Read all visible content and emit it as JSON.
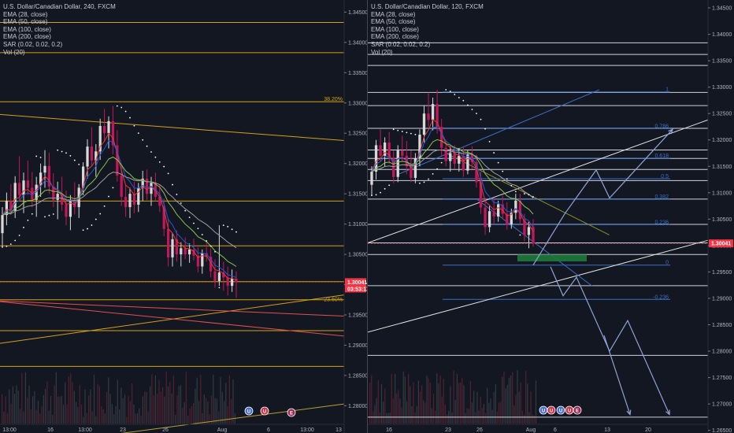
{
  "colors": {
    "background": "#131722",
    "bull": "#d8d8d8",
    "bear": "#c2185b",
    "ema28": "#e53935",
    "ema50": "#1e5bd6",
    "ema100": "#8bc34a",
    "ema200": "#9e9e9e",
    "sar": "#ffffff",
    "hline": "#d4a017",
    "trend_red": "#e05050",
    "fib": "#3d6ec4",
    "white_line": "#e0e0e0",
    "arrow": "#8fa3d6",
    "zone": "#1e7a3a",
    "price_tag": "#f23645"
  },
  "left": {
    "title": "U.S. Dollar/Canadian Dollar, 240, FXCM",
    "indicators": [
      "EMA (28, close)",
      "EMA (50, close)",
      "EMA (100, close)",
      "EMA (200, close)",
      "SAR (0.02, 0.02, 0.2)",
      "Vol (20)"
    ],
    "fib_labels": [
      {
        "text": "38.20%",
        "price": 1.3302
      },
      {
        "text": "23.60%",
        "price": 1.29715
      }
    ],
    "price_tag": "1.30041",
    "countdown": "03:53:12",
    "ghost_tag": "1.30041",
    "event_badges": [
      "U",
      "U",
      "E"
    ]
  },
  "right": {
    "title": "U.S. Dollar/Canadian Dollar, 120, FXCM",
    "indicators": [
      "EMA (28, close)",
      "EMA (50, close)",
      "EMA (100, close)",
      "EMA (200, close)",
      "SAR (0.02, 0.02, 0.2)",
      "Vol (20)"
    ],
    "fib_labels": [
      {
        "text": "1",
        "price": 1.3291
      },
      {
        "text": "0.786",
        "price": 1.32215
      },
      {
        "text": "0.618",
        "price": 1.31655
      },
      {
        "text": "0.5",
        "price": 1.31265
      },
      {
        "text": "0.382",
        "price": 1.30875
      },
      {
        "text": "0.236",
        "price": 1.30395
      },
      {
        "text": "0",
        "price": 1.2963
      },
      {
        "text": "-0.236",
        "price": 1.2898
      }
    ],
    "price_tag": "1.30041",
    "event_badges": [
      "U",
      "U",
      "U",
      "U",
      "E"
    ]
  },
  "chart_data": [
    {
      "type": "candlestick",
      "title": "U.S. Dollar/Canadian Dollar, 240, FXCM",
      "ylim": [
        1.2755,
        1.347
      ],
      "y_ticks": [
        1.345,
        1.34,
        1.335,
        1.33,
        1.325,
        1.32,
        1.315,
        1.31,
        1.305,
        1.3,
        1.295,
        1.29,
        1.285,
        1.28,
        1.275
      ],
      "y_tick_labels": [
        "1.34500",
        "1.34000",
        "1.33500",
        "1.33000",
        "1.32500",
        "1.32000",
        "1.31500",
        "1.31000",
        "1.30500",
        "1.30000",
        "1.29500",
        "1.29000",
        "1.28500",
        "1.28000",
        "1.27500"
      ],
      "x_ticks": [
        "13:00",
        "16",
        "13:00",
        "23",
        "26",
        "Aug",
        "6",
        "13:00",
        "13"
      ],
      "last_price": 1.30041,
      "horizontal_levels": [
        1.3433,
        1.3383,
        1.3302,
        1.3138,
        1.3064,
        1.3005,
        1.2975,
        1.2924,
        1.2865
      ],
      "trendlines": [
        {
          "name": "upper",
          "from": [
            0,
            1.3281
          ],
          "to": [
            1,
            1.3238
          ]
        },
        {
          "name": "lower",
          "from": [
            0,
            1.2903
          ],
          "to": [
            1,
            1.2983
          ]
        },
        {
          "name": "red-1",
          "from": [
            0,
            1.2972
          ],
          "to": [
            1,
            1.2915
          ]
        },
        {
          "name": "red-2",
          "from": [
            0,
            1.2973
          ],
          "to": [
            1,
            1.2948
          ]
        },
        {
          "name": "bottom",
          "from": [
            0,
            1.2728
          ],
          "to": [
            1,
            1.2803
          ]
        }
      ],
      "candles": [
        [
          1.3085,
          1.3128,
          1.3062,
          1.3115
        ],
        [
          1.3115,
          1.3152,
          1.3098,
          1.3138
        ],
        [
          1.3138,
          1.3166,
          1.3115,
          1.3122
        ],
        [
          1.3122,
          1.3179,
          1.311,
          1.3168
        ],
        [
          1.3168,
          1.3212,
          1.314,
          1.3148
        ],
        [
          1.3148,
          1.3185,
          1.3118,
          1.3172
        ],
        [
          1.3172,
          1.3205,
          1.3148,
          1.316
        ],
        [
          1.316,
          1.3186,
          1.3128,
          1.314
        ],
        [
          1.314,
          1.3178,
          1.3112,
          1.3165
        ],
        [
          1.3165,
          1.32,
          1.3145,
          1.3185
        ],
        [
          1.3185,
          1.3222,
          1.316,
          1.3196
        ],
        [
          1.3196,
          1.3218,
          1.315,
          1.3162
        ],
        [
          1.3162,
          1.3184,
          1.3128,
          1.314
        ],
        [
          1.314,
          1.317,
          1.3108,
          1.315
        ],
        [
          1.315,
          1.3178,
          1.3122,
          1.3132
        ],
        [
          1.3132,
          1.3155,
          1.3098,
          1.3112
        ],
        [
          1.3112,
          1.3148,
          1.309,
          1.3138
        ],
        [
          1.3138,
          1.3169,
          1.3116,
          1.3128
        ],
        [
          1.3128,
          1.3166,
          1.311,
          1.316
        ],
        [
          1.316,
          1.3202,
          1.3148,
          1.3195
        ],
        [
          1.3195,
          1.324,
          1.3175,
          1.3228
        ],
        [
          1.3228,
          1.326,
          1.3195,
          1.3205
        ],
        [
          1.3205,
          1.3232,
          1.3178,
          1.322
        ],
        [
          1.322,
          1.3274,
          1.3206,
          1.3262
        ],
        [
          1.3262,
          1.329,
          1.3236,
          1.325
        ],
        [
          1.325,
          1.3278,
          1.3225,
          1.327
        ],
        [
          1.327,
          1.3295,
          1.3215,
          1.323
        ],
        [
          1.323,
          1.3255,
          1.317,
          1.318
        ],
        [
          1.318,
          1.3198,
          1.313,
          1.3145
        ],
        [
          1.3145,
          1.3165,
          1.3112,
          1.3128
        ],
        [
          1.3128,
          1.316,
          1.311,
          1.315
        ],
        [
          1.315,
          1.317,
          1.3118,
          1.3132
        ],
        [
          1.3132,
          1.3168,
          1.312,
          1.316
        ],
        [
          1.316,
          1.3188,
          1.3138,
          1.3175
        ],
        [
          1.3175,
          1.319,
          1.314,
          1.315
        ],
        [
          1.315,
          1.3178,
          1.313,
          1.3168
        ],
        [
          1.3168,
          1.3185,
          1.3138,
          1.3145
        ],
        [
          1.3145,
          1.3165,
          1.312,
          1.313
        ],
        [
          1.313,
          1.3142,
          1.308,
          1.3092
        ],
        [
          1.3092,
          1.3108,
          1.303,
          1.3045
        ],
        [
          1.3045,
          1.3085,
          1.303,
          1.3075
        ],
        [
          1.3075,
          1.309,
          1.3038,
          1.305
        ],
        [
          1.305,
          1.307,
          1.303,
          1.306
        ],
        [
          1.306,
          1.3078,
          1.3042,
          1.305
        ],
        [
          1.305,
          1.3068,
          1.3036,
          1.3058
        ],
        [
          1.3058,
          1.3076,
          1.304,
          1.3048
        ],
        [
          1.3048,
          1.3062,
          1.302,
          1.303
        ],
        [
          1.303,
          1.3058,
          1.3018,
          1.3052
        ],
        [
          1.3052,
          1.3072,
          1.3038,
          1.3046
        ],
        [
          1.3046,
          1.306,
          1.3012,
          1.3022
        ],
        [
          1.3022,
          1.3042,
          1.2995,
          1.3006
        ],
        [
          1.3006,
          1.3098,
          1.2998,
          1.302
        ],
        [
          1.302,
          1.3038,
          1.299,
          1.3012
        ],
        [
          1.3012,
          1.303,
          1.2982,
          1.2998
        ],
        [
          1.2998,
          1.3025,
          1.2988,
          1.301
        ],
        [
          1.301,
          1.3022,
          1.2978,
          1.3004
        ]
      ]
    },
    {
      "type": "candlestick",
      "title": "U.S. Dollar/Canadian Dollar, 120, FXCM",
      "ylim": [
        1.2645,
        1.3465
      ],
      "y_ticks": [
        1.345,
        1.34,
        1.335,
        1.33,
        1.325,
        1.32,
        1.315,
        1.31,
        1.305,
        1.3,
        1.295,
        1.29,
        1.285,
        1.28,
        1.275,
        1.27,
        1.265
      ],
      "y_tick_labels": [
        "1.34500",
        "1.34000",
        "1.33500",
        "1.33000",
        "1.32500",
        "1.32000",
        "1.31500",
        "1.31000",
        "1.30500",
        "1.30000",
        "1.29500",
        "1.29000",
        "1.28500",
        "1.28000",
        "1.27500",
        "1.27000",
        "1.26500"
      ],
      "x_ticks": [
        "16",
        "23",
        "26",
        "Aug",
        "6",
        "13",
        "20"
      ],
      "last_price": 1.30041,
      "horizontal_levels": [
        1.3384,
        1.3362,
        1.3341,
        1.329,
        1.3265,
        1.3222,
        1.3181,
        1.3165,
        1.3144,
        1.3123,
        1.3088,
        1.304,
        1.3005,
        1.2983,
        1.2924,
        1.2792,
        1.2675
      ],
      "trendlines": [
        {
          "name": "white-upper",
          "from": [
            0,
            1.3005
          ],
          "to": [
            1,
            1.3238
          ]
        },
        {
          "name": "white-lower",
          "from": [
            0,
            1.2836
          ],
          "to": [
            1,
            1.301
          ]
        },
        {
          "name": "blue-diag-1",
          "from": [
            0.09,
            1.3135
          ],
          "to": [
            0.68,
            1.3295
          ]
        },
        {
          "name": "blue-diag-2",
          "from": [
            0.32,
            1.3088
          ],
          "to": [
            0.66,
            1.2923
          ]
        },
        {
          "name": "olive-diag",
          "from": [
            0.23,
            1.3175
          ],
          "to": [
            0.71,
            1.302
          ]
        }
      ],
      "demand_zone": [
        1.2983,
        1.297
      ],
      "candles": [
        [
          1.3115,
          1.315,
          1.3095,
          1.314
        ],
        [
          1.314,
          1.32,
          1.3125,
          1.319
        ],
        [
          1.319,
          1.322,
          1.316,
          1.317
        ],
        [
          1.317,
          1.3205,
          1.315,
          1.3195
        ],
        [
          1.3195,
          1.3215,
          1.3155,
          1.3165
        ],
        [
          1.3165,
          1.318,
          1.3118,
          1.313
        ],
        [
          1.313,
          1.319,
          1.312,
          1.318
        ],
        [
          1.318,
          1.3208,
          1.3158,
          1.317
        ],
        [
          1.317,
          1.3198,
          1.3135,
          1.315
        ],
        [
          1.315,
          1.318,
          1.312,
          1.3128
        ],
        [
          1.3128,
          1.3175,
          1.3118,
          1.3165
        ],
        [
          1.3165,
          1.322,
          1.315,
          1.321
        ],
        [
          1.321,
          1.3265,
          1.3195,
          1.325
        ],
        [
          1.325,
          1.329,
          1.3225,
          1.3238
        ],
        [
          1.3238,
          1.328,
          1.3218,
          1.3268
        ],
        [
          1.3268,
          1.3295,
          1.3212,
          1.3225
        ],
        [
          1.3225,
          1.324,
          1.317,
          1.3185
        ],
        [
          1.3185,
          1.32,
          1.315,
          1.316
        ],
        [
          1.316,
          1.3188,
          1.314,
          1.3175
        ],
        [
          1.3175,
          1.319,
          1.3145,
          1.3155
        ],
        [
          1.3155,
          1.3185,
          1.314,
          1.317
        ],
        [
          1.317,
          1.3188,
          1.313,
          1.3142
        ],
        [
          1.3142,
          1.318,
          1.3135,
          1.3172
        ],
        [
          1.3172,
          1.3188,
          1.3145,
          1.3158
        ],
        [
          1.3158,
          1.3172,
          1.311,
          1.312
        ],
        [
          1.312,
          1.314,
          1.306,
          1.3072
        ],
        [
          1.3072,
          1.309,
          1.302,
          1.3035
        ],
        [
          1.3035,
          1.3075,
          1.3025,
          1.3065
        ],
        [
          1.3065,
          1.309,
          1.304,
          1.3055
        ],
        [
          1.3055,
          1.3085,
          1.3045,
          1.3078
        ],
        [
          1.3078,
          1.3095,
          1.305,
          1.306
        ],
        [
          1.306,
          1.3082,
          1.303,
          1.304
        ],
        [
          1.304,
          1.307,
          1.3032,
          1.3062
        ],
        [
          1.3062,
          1.3098,
          1.305,
          1.3085
        ],
        [
          1.3085,
          1.3098,
          1.304,
          1.305
        ],
        [
          1.305,
          1.306,
          1.3008,
          1.302
        ],
        [
          1.302,
          1.3045,
          1.2995,
          1.3035
        ],
        [
          1.3035,
          1.305,
          1.2998,
          1.3004
        ]
      ]
    }
  ]
}
